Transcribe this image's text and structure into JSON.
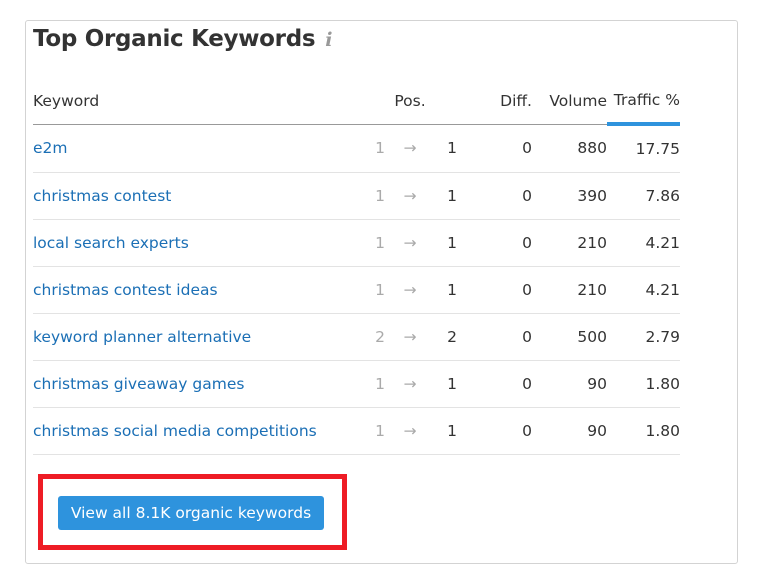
{
  "widget": {
    "title": "Top Organic Keywords",
    "info_icon": "info-icon"
  },
  "table": {
    "headers": {
      "keyword": "Keyword",
      "pos": "Pos.",
      "diff": "Diff.",
      "volume": "Volume",
      "traffic": "Traffic %"
    },
    "sorted_column": "Traffic %",
    "rows": [
      {
        "keyword": "e2m",
        "prev": "1",
        "pos": "1",
        "diff": "0",
        "volume": "880",
        "traffic": "17.75"
      },
      {
        "keyword": "christmas contest",
        "prev": "1",
        "pos": "1",
        "diff": "0",
        "volume": "390",
        "traffic": "7.86"
      },
      {
        "keyword": "local search experts",
        "prev": "1",
        "pos": "1",
        "diff": "0",
        "volume": "210",
        "traffic": "4.21"
      },
      {
        "keyword": "christmas contest ideas",
        "prev": "1",
        "pos": "1",
        "diff": "0",
        "volume": "210",
        "traffic": "4.21"
      },
      {
        "keyword": "keyword planner alternative",
        "prev": "2",
        "pos": "2",
        "diff": "0",
        "volume": "500",
        "traffic": "2.79"
      },
      {
        "keyword": "christmas giveaway games",
        "prev": "1",
        "pos": "1",
        "diff": "0",
        "volume": "90",
        "traffic": "1.80"
      },
      {
        "keyword": "christmas social media competitions",
        "prev": "1",
        "pos": "1",
        "diff": "0",
        "volume": "90",
        "traffic": "1.80"
      }
    ]
  },
  "button": {
    "label": "View all 8.1K organic keywords"
  },
  "colors": {
    "accent": "#2e93dd",
    "link": "#1b6fb5",
    "highlight": "#ee1c25"
  }
}
